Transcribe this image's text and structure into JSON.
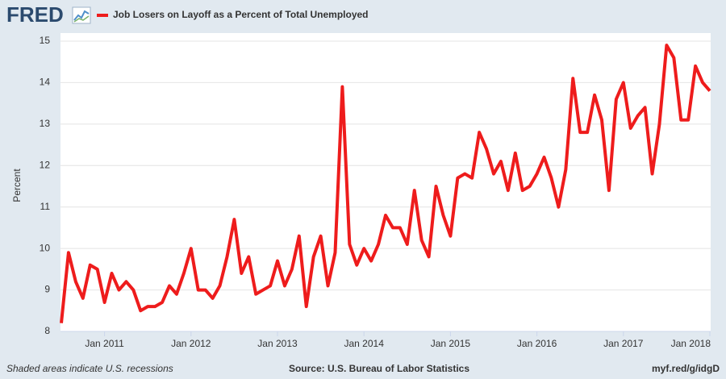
{
  "logo": "FRED",
  "source": "Source: U.S. Bureau of Labor Statistics",
  "recession_note": "Shaded areas indicate U.S. recessions",
  "link": "myf.red/g/idgD",
  "chart_data": {
    "type": "line",
    "ylabel": "Percent",
    "series": [
      {
        "name": "Job Losers on Layoff as a Percent of Total Unemployed",
        "color": "#ee1c1c",
        "values": [
          8.2,
          9.9,
          9.2,
          8.8,
          9.6,
          9.5,
          8.7,
          9.4,
          9.0,
          9.2,
          9.0,
          8.5,
          8.6,
          8.6,
          8.7,
          9.1,
          8.9,
          9.4,
          10.0,
          9.0,
          9.0,
          8.8,
          9.1,
          9.8,
          10.7,
          9.4,
          9.8,
          8.9,
          9.0,
          9.1,
          9.7,
          9.1,
          9.5,
          10.3,
          8.6,
          9.8,
          10.3,
          9.1,
          9.9,
          13.9,
          10.1,
          9.6,
          10.0,
          9.7,
          10.1,
          10.8,
          10.5,
          10.5,
          10.1,
          11.4,
          10.2,
          9.8,
          11.5,
          10.8,
          10.3,
          11.7,
          11.8,
          11.7,
          12.8,
          12.4,
          11.8,
          12.1,
          11.4,
          12.3,
          11.4,
          11.5,
          11.8,
          12.2,
          11.7,
          11.0,
          11.9,
          14.1,
          12.8,
          12.8,
          13.7,
          13.1,
          11.4,
          13.6,
          14.0,
          12.9,
          13.2,
          13.4,
          11.8,
          13.0,
          14.9,
          14.6,
          13.1,
          13.1,
          14.4,
          14.0,
          13.8
        ]
      }
    ],
    "x": [
      "2010-07",
      "2010-08",
      "2010-09",
      "2010-10",
      "2010-11",
      "2010-12",
      "2011-01",
      "2011-02",
      "2011-03",
      "2011-04",
      "2011-05",
      "2011-06",
      "2011-07",
      "2011-08",
      "2011-09",
      "2011-10",
      "2011-11",
      "2011-12",
      "2012-01",
      "2012-02",
      "2012-03",
      "2012-04",
      "2012-05",
      "2012-06",
      "2012-07",
      "2012-08",
      "2012-09",
      "2012-10",
      "2012-11",
      "2012-12",
      "2013-01",
      "2013-02",
      "2013-03",
      "2013-04",
      "2013-05",
      "2013-06",
      "2013-07",
      "2013-08",
      "2013-09",
      "2013-10",
      "2013-11",
      "2013-12",
      "2014-01",
      "2014-02",
      "2014-03",
      "2014-04",
      "2014-05",
      "2014-06",
      "2014-07",
      "2014-08",
      "2014-09",
      "2014-10",
      "2014-11",
      "2014-12",
      "2015-01",
      "2015-02",
      "2015-03",
      "2015-04",
      "2015-05",
      "2015-06",
      "2015-07",
      "2015-08",
      "2015-09",
      "2015-10",
      "2015-11",
      "2015-12",
      "2016-01",
      "2016-02",
      "2016-03",
      "2016-04",
      "2016-05",
      "2016-06",
      "2016-07",
      "2016-08",
      "2016-09",
      "2016-10",
      "2016-11",
      "2016-12",
      "2017-01",
      "2017-02",
      "2017-03",
      "2017-04",
      "2017-05",
      "2017-06",
      "2017-07",
      "2017-08",
      "2017-09",
      "2017-10",
      "2017-11",
      "2017-12",
      "2018-01"
    ],
    "xlim": [
      "2010-07",
      "2018-01"
    ],
    "xticks": [
      {
        "value": "2011-01",
        "label": "Jan 2011"
      },
      {
        "value": "2012-01",
        "label": "Jan 2012"
      },
      {
        "value": "2013-01",
        "label": "Jan 2013"
      },
      {
        "value": "2014-01",
        "label": "Jan 2014"
      },
      {
        "value": "2015-01",
        "label": "Jan 2015"
      },
      {
        "value": "2016-01",
        "label": "Jan 2016"
      },
      {
        "value": "2017-01",
        "label": "Jan 2017"
      },
      {
        "value": "2018-01",
        "label": "Jan 2018"
      }
    ],
    "ylim": [
      8,
      15
    ],
    "yticks": [
      8,
      9,
      10,
      11,
      12,
      13,
      14,
      15
    ],
    "grid": true
  }
}
